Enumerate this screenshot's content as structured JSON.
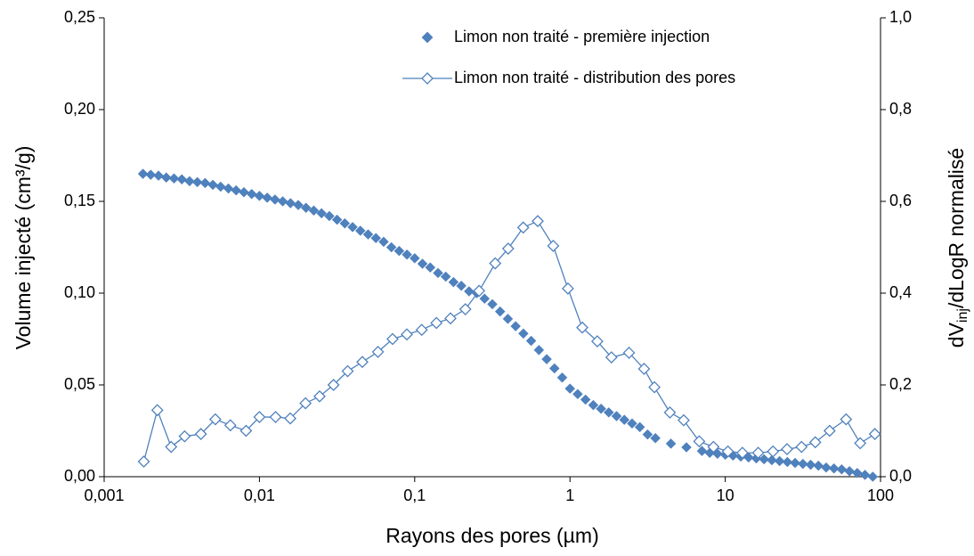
{
  "chart_data": {
    "type": "scatter",
    "xlabel": "Rayons des pores (µm)",
    "ylabel": "Volume injecté (cm³/g)",
    "y2label": [
      "dV",
      "inj",
      "/dLogR normalisé"
    ],
    "xscale": "log",
    "xlim": [
      0.001,
      100
    ],
    "xticks": [
      {
        "value": 0.001,
        "label": "0,001"
      },
      {
        "value": 0.01,
        "label": "0,01"
      },
      {
        "value": 0.1,
        "label": "0,1"
      },
      1,
      10,
      100
    ],
    "ylim": [
      0,
      0.25
    ],
    "yticks": [
      {
        "value": 0,
        "label": "0,00"
      },
      {
        "value": 0.05,
        "label": "0,05"
      },
      {
        "value": 0.1,
        "label": "0,10"
      },
      {
        "value": 0.15,
        "label": "0,15"
      },
      {
        "value": 0.2,
        "label": "0,20"
      },
      {
        "value": 0.25,
        "label": "0,25"
      }
    ],
    "y2lim": [
      0,
      1
    ],
    "y2ticks": [
      {
        "value": 0,
        "label": "0,0"
      },
      {
        "value": 0.2,
        "label": "0,2"
      },
      {
        "value": 0.4,
        "label": "0,4"
      },
      {
        "value": 0.6,
        "label": "0,6"
      },
      {
        "value": 0.8,
        "label": "0,8"
      },
      {
        "value": 1,
        "label": "1,0"
      }
    ],
    "legend": "top",
    "series": [
      {
        "name": "Limon non traité - première injection",
        "color": "#4f81bd",
        "marker": "filled",
        "x": [
          0.001778,
          0.001995,
          0.002239,
          0.002512,
          0.002818,
          0.003162,
          0.003548,
          0.003981,
          0.004467,
          0.005012,
          0.005623,
          0.00631,
          0.007079,
          0.007943,
          0.008913,
          0.01,
          0.01122,
          0.01259,
          0.01413,
          0.01585,
          0.01778,
          0.01995,
          0.02239,
          0.02512,
          0.02818,
          0.03162,
          0.03548,
          0.03981,
          0.04467,
          0.05012,
          0.05623,
          0.0631,
          0.07079,
          0.07943,
          0.08913,
          0.1,
          0.1122,
          0.1259,
          0.1413,
          0.1585,
          0.1778,
          0.1995,
          0.2239,
          0.2512,
          0.2818,
          0.3162,
          0.3548,
          0.3981,
          0.4467,
          0.5012,
          0.5623,
          0.631,
          0.7079,
          0.7943,
          0.8913,
          1,
          1.122,
          1.259,
          1.413,
          1.585,
          1.778,
          1.995,
          2.239,
          2.512,
          2.818,
          3.162,
          3.548,
          4.467,
          5.623,
          7.079,
          7.943,
          8.913,
          10,
          11.22,
          12.59,
          14.13,
          15.85,
          17.78,
          19.95,
          22.39,
          25.12,
          28.18,
          31.62,
          35.48,
          39.81,
          44.67,
          50.12,
          56.23,
          63.1,
          70.79,
          79.43,
          89.13
        ],
        "values": [
          0.165,
          0.1645,
          0.164,
          0.163,
          0.1625,
          0.162,
          0.161,
          0.1605,
          0.16,
          0.159,
          0.158,
          0.157,
          0.156,
          0.155,
          0.154,
          0.153,
          0.152,
          0.151,
          0.15,
          0.149,
          0.148,
          0.1465,
          0.145,
          0.1435,
          0.142,
          0.14,
          0.138,
          0.136,
          0.134,
          0.132,
          0.13,
          0.128,
          0.125,
          0.123,
          0.121,
          0.119,
          0.116,
          0.114,
          0.111,
          0.109,
          0.106,
          0.104,
          0.101,
          0.1,
          0.097,
          0.094,
          0.09,
          0.086,
          0.082,
          0.078,
          0.074,
          0.069,
          0.064,
          0.059,
          0.054,
          0.048,
          0.045,
          0.042,
          0.039,
          0.037,
          0.035,
          0.033,
          0.031,
          0.029,
          0.027,
          0.023,
          0.021,
          0.018,
          0.016,
          0.014,
          0.013,
          0.0125,
          0.012,
          0.0115,
          0.011,
          0.0105,
          0.01,
          0.0095,
          0.009,
          0.0085,
          0.008,
          0.0075,
          0.007,
          0.0065,
          0.006,
          0.005,
          0.0045,
          0.004,
          0.003,
          0.002,
          0.001,
          0
        ]
      },
      {
        "name": "Limon non traité - distribution des pores",
        "color": "#4f81bd",
        "marker": "open",
        "axis": "y2",
        "x": [
          0.0018,
          0.0022,
          0.0027,
          0.0033,
          0.0042,
          0.0052,
          0.0065,
          0.0082,
          0.01,
          0.0127,
          0.0158,
          0.0198,
          0.0244,
          0.03,
          0.037,
          0.046,
          0.058,
          0.072,
          0.089,
          0.111,
          0.138,
          0.17,
          0.212,
          0.26,
          0.33,
          0.4,
          0.5,
          0.62,
          0.78,
          0.97,
          1.2,
          1.5,
          1.85,
          2.4,
          3,
          3.5,
          4.4,
          5.4,
          6.8,
          8.4,
          10.4,
          12.9,
          16.3,
          20.3,
          25,
          31,
          38,
          47,
          60,
          74,
          92
        ],
        "values": [
          0.033,
          0.145,
          0.065,
          0.088,
          0.093,
          0.125,
          0.112,
          0.1,
          0.13,
          0.13,
          0.127,
          0.16,
          0.175,
          0.2,
          0.23,
          0.25,
          0.272,
          0.3,
          0.31,
          0.32,
          0.335,
          0.345,
          0.365,
          0.405,
          0.465,
          0.497,
          0.543,
          0.557,
          0.503,
          0.41,
          0.325,
          0.295,
          0.26,
          0.27,
          0.235,
          0.195,
          0.14,
          0.123,
          0.077,
          0.065,
          0.055,
          0.052,
          0.052,
          0.055,
          0.06,
          0.065,
          0.075,
          0.1,
          0.125,
          0.073,
          0.093
        ]
      }
    ]
  }
}
